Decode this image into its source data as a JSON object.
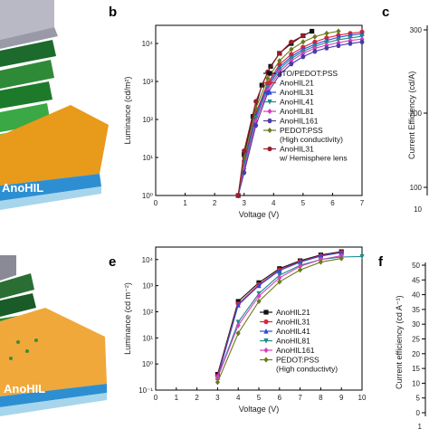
{
  "device_label_top": "AnoHIL",
  "device_label_bottom": "AnoHIL",
  "chart_data": [
    {
      "panel": "b",
      "type": "line",
      "xlabel": "Voltage (V)",
      "ylabel": "Luminance (cd/m²)",
      "xlim": [
        0,
        7
      ],
      "ylim": [
        1,
        30000
      ],
      "yscale": "log",
      "xticks": [
        0,
        1,
        2,
        3,
        4,
        5,
        6,
        7
      ],
      "yticks": [
        "10⁰",
        "10¹",
        "10²",
        "10³",
        "10⁴"
      ],
      "legend_position": "bottom-right",
      "series": [
        {
          "name": "ITO/PEDOT:PSS",
          "color": "#111111",
          "marker": "square",
          "x": [
            2.8,
            3.0,
            3.3,
            3.6,
            3.9,
            4.2,
            4.6,
            5.0,
            5.3
          ],
          "y": [
            1,
            12,
            120,
            800,
            2500,
            5500,
            10000,
            16000,
            21000
          ]
        },
        {
          "name": "AnoHIL21",
          "color": "#d8243a",
          "marker": "circle",
          "x": [
            2.8,
            3.0,
            3.4,
            3.8,
            4.2,
            4.6,
            5.0,
            5.4,
            5.8,
            6.2,
            6.6,
            7.0
          ],
          "y": [
            1,
            8,
            150,
            900,
            2800,
            5200,
            8000,
            11000,
            14000,
            16500,
            18500,
            20000
          ]
        },
        {
          "name": "AnoHIL31",
          "color": "#2e4bd6",
          "marker": "triangle",
          "x": [
            2.8,
            3.0,
            3.4,
            3.8,
            4.2,
            4.6,
            5.0,
            5.4,
            5.8,
            6.2,
            6.6,
            7.0
          ],
          "y": [
            1,
            7,
            130,
            800,
            2400,
            4500,
            7000,
            9500,
            12000,
            14500,
            16500,
            18000
          ]
        },
        {
          "name": "AnoHIL41",
          "color": "#1f8a8a",
          "marker": "triangle-down",
          "x": [
            2.8,
            3.0,
            3.4,
            3.8,
            4.2,
            4.6,
            5.0,
            5.4,
            5.8,
            6.2,
            6.6,
            7.0
          ],
          "y": [
            1,
            6,
            110,
            700,
            2100,
            4000,
            6200,
            8500,
            10500,
            12500,
            14000,
            15500
          ]
        },
        {
          "name": "AnoHIL81",
          "color": "#d63fc1",
          "marker": "diamond",
          "x": [
            2.8,
            3.0,
            3.4,
            3.8,
            4.2,
            4.6,
            5.0,
            5.4,
            5.8,
            6.2,
            6.6,
            7.0
          ],
          "y": [
            1,
            5,
            90,
            600,
            1800,
            3500,
            5500,
            7500,
            9000,
            10500,
            12000,
            13000
          ]
        },
        {
          "name": "AnoHIL161",
          "color": "#4a3aa8",
          "marker": "hexagon",
          "x": [
            2.8,
            3.0,
            3.4,
            3.8,
            4.2,
            4.6,
            5.0,
            5.4,
            5.8,
            6.2,
            6.6,
            7.0
          ],
          "y": [
            1,
            4,
            70,
            500,
            1500,
            2900,
            4500,
            6200,
            7600,
            8800,
            10000,
            11000
          ]
        },
        {
          "name": "PEDOT:PSS\n(High conductivity)",
          "color": "#6b7a1a",
          "marker": "diamond",
          "x": [
            2.8,
            3.0,
            3.4,
            3.8,
            4.2,
            4.6,
            5.0,
            5.4,
            5.8,
            6.2
          ],
          "y": [
            1,
            10,
            200,
            1200,
            3500,
            7000,
            11000,
            15000,
            18500,
            21000
          ]
        },
        {
          "name": "AnoHIL31\nw/ Hemisphere lens",
          "color": "#9a1b2a",
          "marker": "circle",
          "x": [
            2.8,
            3.0,
            3.4,
            3.8,
            4.2,
            4.6,
            5.0
          ],
          "y": [
            1,
            15,
            300,
            1800,
            5500,
            11000,
            16000
          ]
        }
      ]
    },
    {
      "panel": "e",
      "type": "line",
      "xlabel": "Voltage (V)",
      "ylabel": "Luminance (cd m⁻²)",
      "xlim": [
        0,
        10
      ],
      "ylim": [
        0.1,
        30000
      ],
      "yscale": "log",
      "xticks": [
        0,
        1,
        2,
        3,
        4,
        5,
        6,
        7,
        8,
        9,
        10
      ],
      "yticks": [
        "10⁻¹",
        "10⁰",
        "10¹",
        "10²",
        "10³",
        "10⁴"
      ],
      "legend_position": "bottom-right",
      "series": [
        {
          "name": "AnoHIL21",
          "color": "#111111",
          "marker": "square",
          "x": [
            3,
            4,
            5,
            6,
            7,
            8,
            9
          ],
          "y": [
            0.4,
            250,
            1300,
            4500,
            9000,
            15000,
            20000
          ]
        },
        {
          "name": "AnoHIL31",
          "color": "#e0213c",
          "marker": "circle",
          "x": [
            3,
            4,
            5,
            6,
            7,
            8,
            9
          ],
          "y": [
            0.35,
            200,
            1100,
            4000,
            8500,
            14000,
            19000
          ]
        },
        {
          "name": "AnoHIL41",
          "color": "#2e4bd6",
          "marker": "triangle",
          "x": [
            3,
            4,
            5,
            6,
            7,
            8,
            9
          ],
          "y": [
            0.3,
            180,
            1000,
            3800,
            8000,
            13500,
            18500
          ]
        },
        {
          "name": "AnoHIL81",
          "color": "#1f8a8a",
          "marker": "triangle-down",
          "x": [
            3,
            4,
            5,
            6,
            7,
            8,
            9,
            10
          ],
          "y": [
            0.3,
            40,
            500,
            2500,
            6000,
            10000,
            12500,
            13000
          ]
        },
        {
          "name": "AnoHIL161",
          "color": "#d63fc1",
          "marker": "diamond",
          "x": [
            3,
            4,
            5,
            6,
            7,
            8,
            9
          ],
          "y": [
            0.3,
            30,
            400,
            2000,
            5500,
            10000,
            14000
          ]
        },
        {
          "name": "PEDOT:PSS\n(High conductivty)",
          "color": "#6b7a1a",
          "marker": "diamond",
          "x": [
            3,
            4,
            5,
            6,
            7,
            8,
            9
          ],
          "y": [
            0.2,
            15,
            250,
            1400,
            4000,
            8000,
            11000
          ]
        }
      ]
    },
    {
      "panel": "c",
      "type": "line",
      "ylabel": "Current Efficiency (cd/A)",
      "yticks": [
        "300",
        "200",
        "100"
      ],
      "xtick_partial": "10"
    },
    {
      "panel": "f",
      "type": "line",
      "ylabel": "Current efficiency (cd A⁻¹)",
      "yticks": [
        "50",
        "45",
        "40",
        "35",
        "30",
        "25",
        "20",
        "15",
        "10",
        "5",
        "0"
      ],
      "xtick_partial": "1"
    }
  ]
}
